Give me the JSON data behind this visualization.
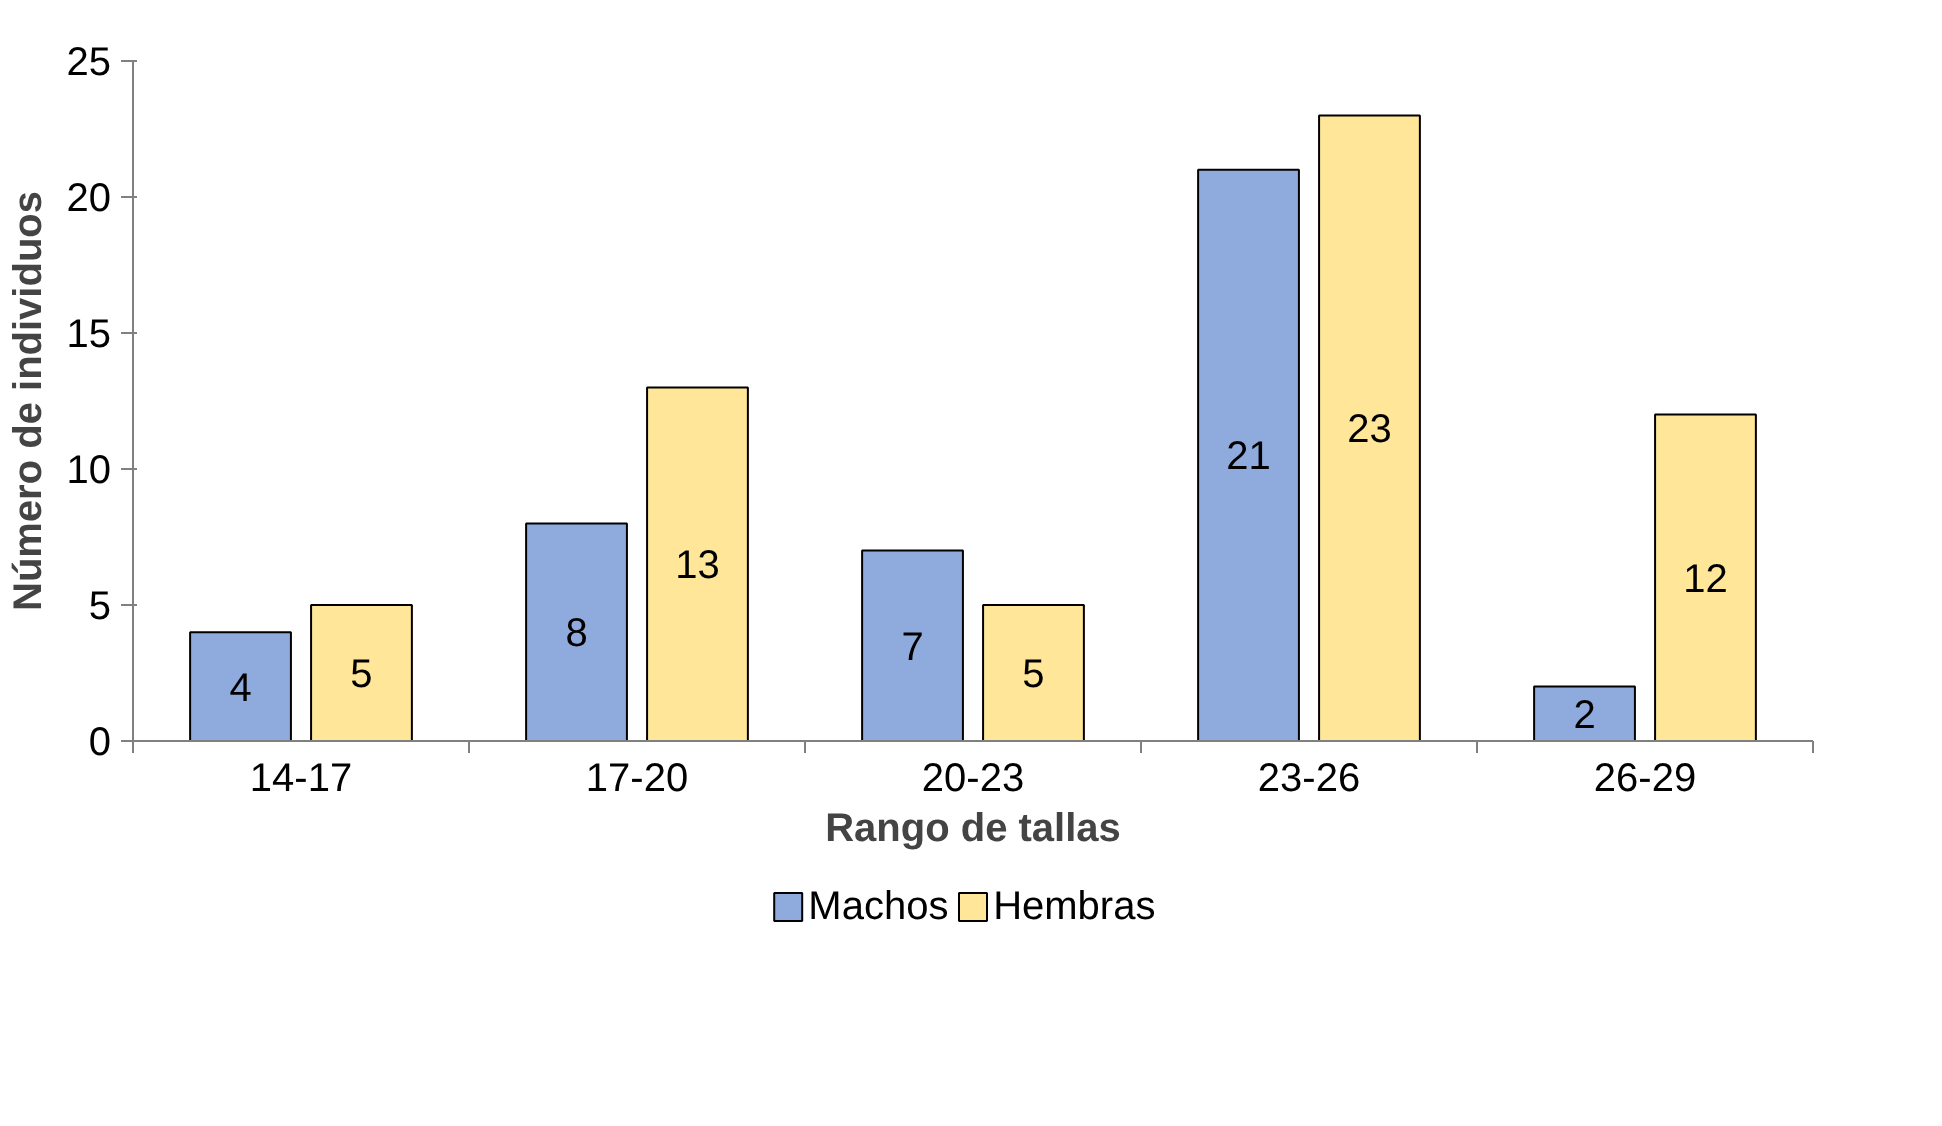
{
  "chart_data": {
    "type": "bar",
    "xlabel": "Rango de tallas",
    "ylabel": "Número de individuos",
    "categories": [
      "14-17",
      "17-20",
      "20-23",
      "23-26",
      "26-29"
    ],
    "series": [
      {
        "name": "Machos",
        "color": "#8faadc",
        "values": [
          4,
          8,
          7,
          21,
          2
        ]
      },
      {
        "name": "Hembras",
        "color": "#ffe699",
        "values": [
          5,
          13,
          5,
          23,
          12
        ]
      }
    ],
    "ylim": [
      0,
      25
    ],
    "yticks": [
      0,
      5,
      10,
      15,
      20,
      25
    ],
    "data_labels": true,
    "legend": "bottom",
    "grid": false
  }
}
